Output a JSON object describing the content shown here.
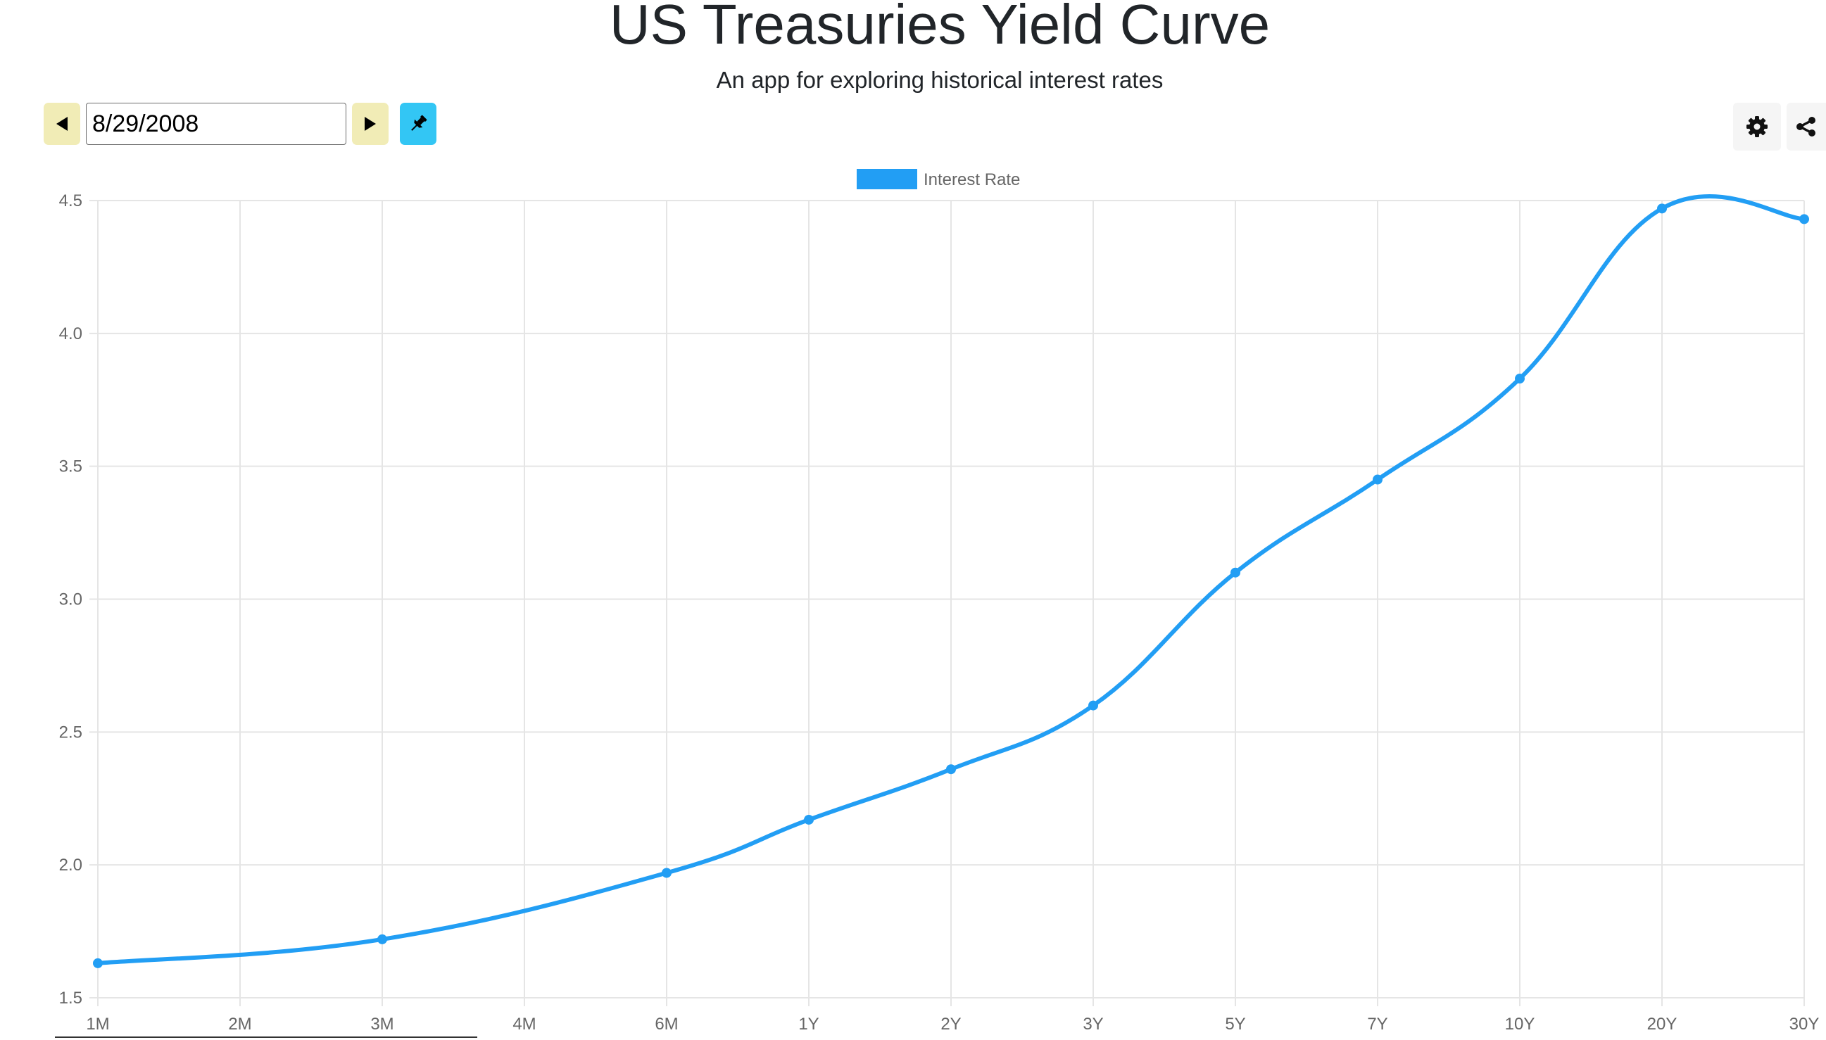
{
  "header": {
    "title": "US Treasuries Yield Curve",
    "subtitle": "An app for exploring historical interest rates"
  },
  "toolbar": {
    "date_value": "8/29/2008",
    "prev_icon": "caret-left-icon",
    "next_icon": "caret-right-icon",
    "pin_icon": "pin-icon",
    "settings_icon": "gear-icon",
    "share_icon": "share-icon"
  },
  "colors": {
    "nav_button_bg": "#f1ecb6",
    "pin_button_bg": "#33c6f4",
    "series_color": "#229ef4",
    "grid_color": "#e5e5e5"
  },
  "chart_data": {
    "type": "line",
    "categories": [
      "1M",
      "2M",
      "3M",
      "4M",
      "6M",
      "1Y",
      "2Y",
      "3Y",
      "5Y",
      "7Y",
      "10Y",
      "20Y",
      "30Y"
    ],
    "series": [
      {
        "name": "Interest Rate",
        "values": [
          1.63,
          null,
          1.72,
          null,
          1.97,
          2.17,
          2.36,
          2.6,
          3.1,
          3.45,
          3.83,
          4.47,
          4.43
        ]
      }
    ],
    "yticks": [
      "1.5",
      "2.0",
      "2.5",
      "3.0",
      "3.5",
      "4.0",
      "4.5"
    ],
    "ylim": [
      1.5,
      4.5
    ],
    "grid": true,
    "legend": "top-center"
  }
}
